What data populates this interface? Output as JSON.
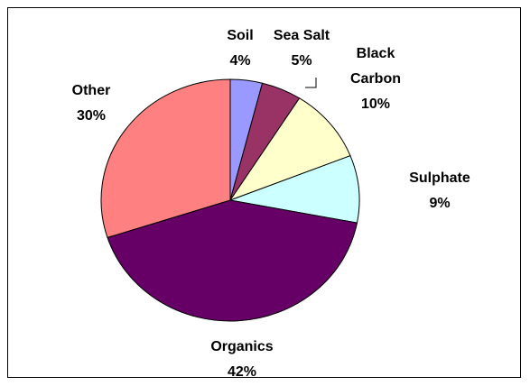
{
  "chart_data": {
    "type": "pie",
    "categories": [
      "Soil",
      "Sea Salt",
      "Black Carbon",
      "Sulphate",
      "Organics",
      "Other"
    ],
    "values": [
      4,
      5,
      10,
      9,
      42,
      30
    ],
    "value_labels": [
      "4%",
      "5%",
      "10%",
      "9%",
      "42%",
      "30%"
    ],
    "colors": [
      "#9999ff",
      "#993366",
      "#ffffcc",
      "#ccffff",
      "#660066",
      "#ff8080"
    ]
  }
}
